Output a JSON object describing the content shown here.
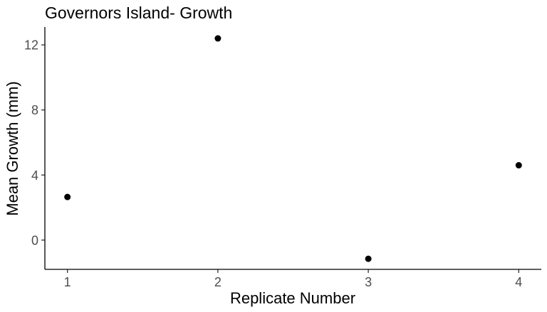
{
  "chart_data": {
    "type": "scatter",
    "title": "Governors Island- Growth",
    "xlabel": "Replicate Number",
    "ylabel": "Mean Growth (mm)",
    "x": [
      1,
      2,
      3,
      4
    ],
    "y": [
      2.65,
      12.4,
      -1.15,
      4.6
    ],
    "xticks": [
      1,
      2,
      3,
      4
    ],
    "yticks": [
      0,
      4,
      8,
      12
    ],
    "xlim": [
      0.85,
      4.15
    ],
    "ylim": [
      -1.8,
      13.1
    ],
    "grid": false,
    "point_color": "#000000"
  }
}
